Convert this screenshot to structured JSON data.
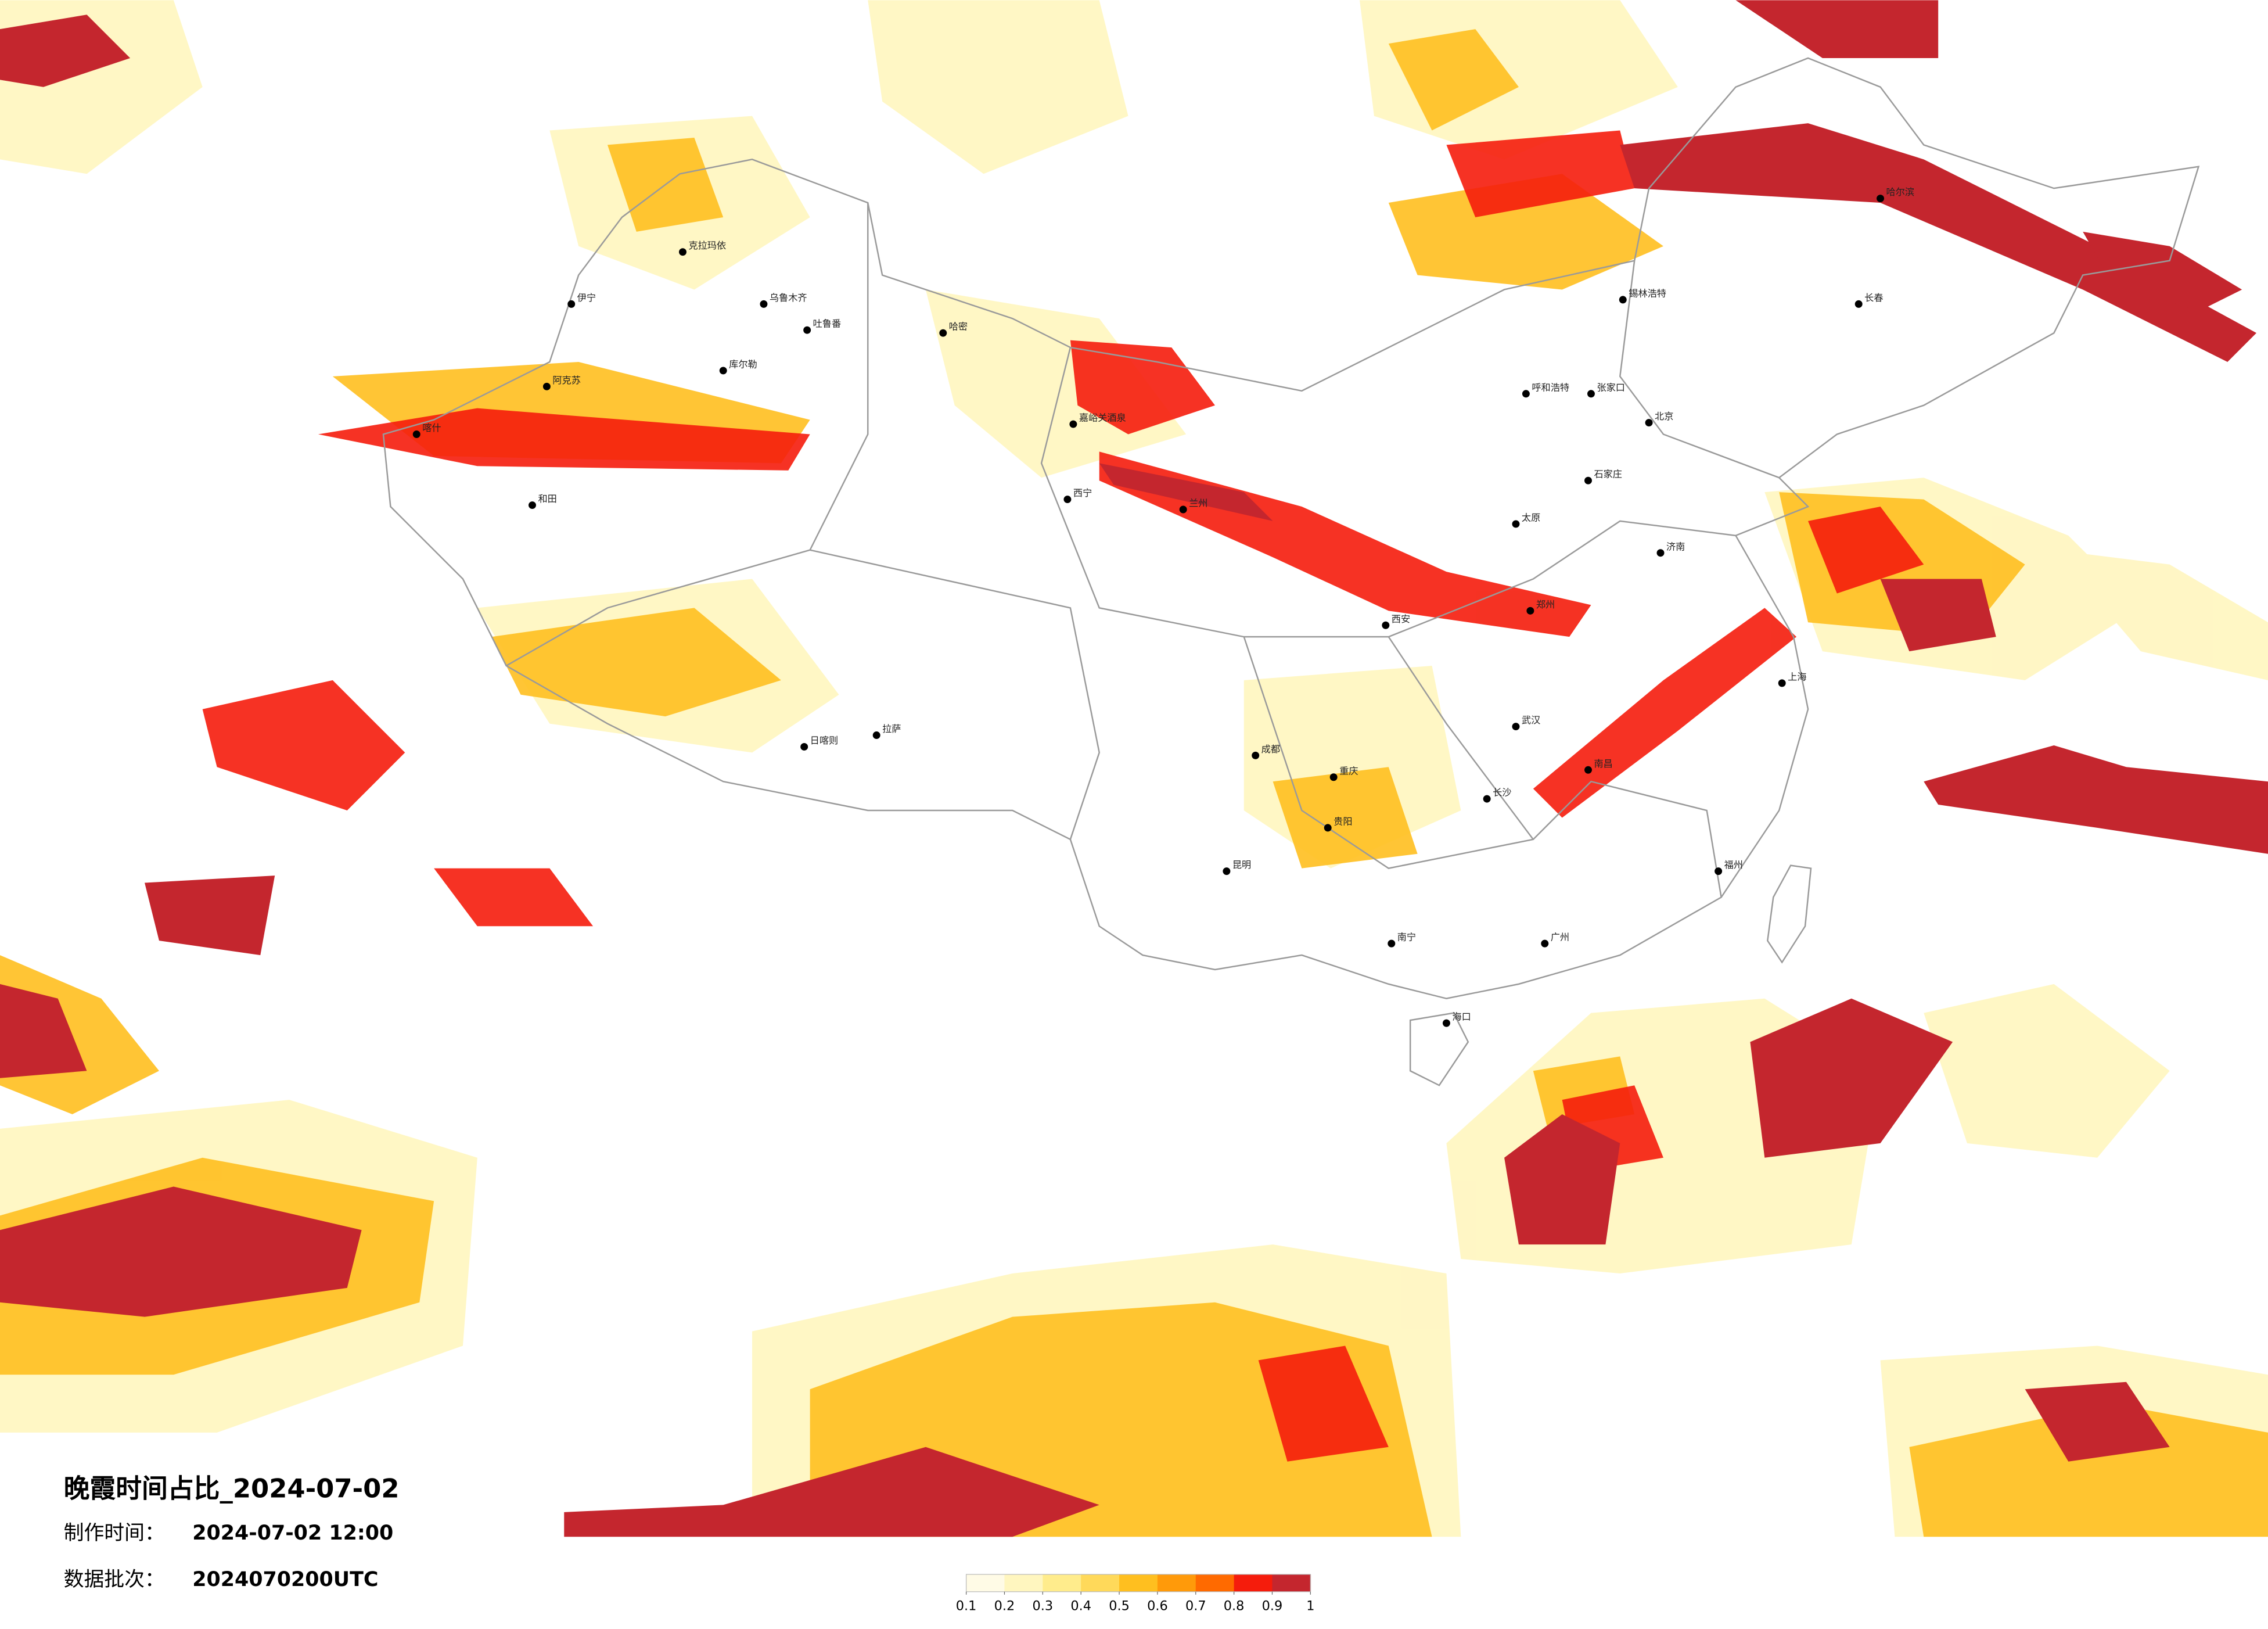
{
  "header": {
    "title": "晚霞时间占比_2024-07-02"
  },
  "info": [
    {
      "label": "制作时间：",
      "value": "2024-07-02 12:00"
    },
    {
      "label": "数据批次：",
      "value": "2024070200UTC"
    }
  ],
  "colorbar": {
    "ticks": [
      0.1,
      0.2,
      0.3,
      0.4,
      0.5,
      0.6,
      0.7,
      0.8,
      0.9,
      1
    ],
    "colors": [
      "#fffbe6",
      "#fff6bf",
      "#ffec8c",
      "#ffd95a",
      "#ffbf1f",
      "#ff9a0a",
      "#ff6a00",
      "#f51c0c",
      "#c4262e"
    ]
  },
  "cities": [
    "伊宁",
    "克拉玛依",
    "乌鲁木齐",
    "吐鲁番",
    "哈密",
    "阿克苏",
    "喀什",
    "和田",
    "库尔勒",
    "嘉峪关酒泉",
    "西宁",
    "拉萨",
    "日喀则",
    "兰州",
    "呼和浩特",
    "北京",
    "张家口",
    "哈尔滨",
    "长春",
    "锡林浩特",
    "成都",
    "重庆",
    "昆明",
    "贵阳",
    "南宁",
    "海口",
    "广州",
    "福州",
    "上海",
    "武汉",
    "长沙",
    "南昌",
    "西安",
    "郑州",
    "济南",
    "石家庄",
    "太原"
  ]
}
